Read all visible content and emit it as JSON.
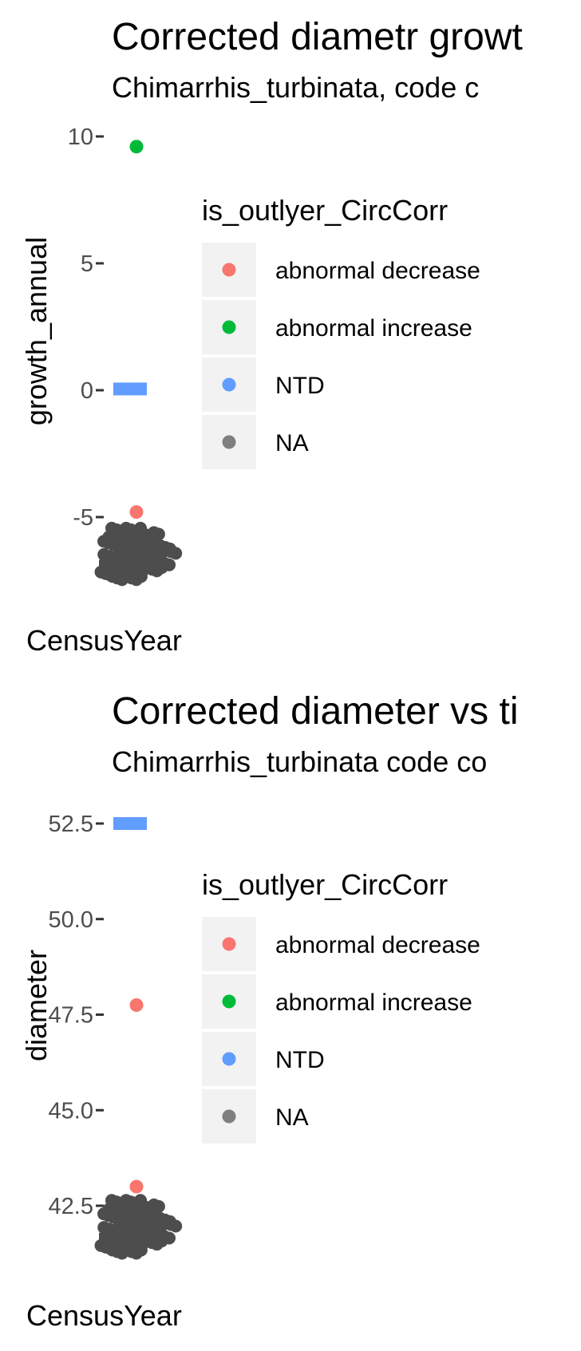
{
  "chart_data": [
    {
      "type": "scatter",
      "title": "Corrected diametr growt",
      "subtitle": "Chimarrhis_turbinata, code c",
      "xlabel": "CensusYear",
      "ylabel": "growth_annual",
      "yticks": [
        {
          "value": 10,
          "label": "10"
        },
        {
          "value": 5,
          "label": "5"
        },
        {
          "value": 0,
          "label": "0"
        },
        {
          "value": -5,
          "label": "-5"
        }
      ],
      "ylim": [
        -7.5,
        10.8
      ],
      "legend": {
        "title": "is_outlyer_CircCorr",
        "placement": "right",
        "entries": [
          {
            "label": "abnormal decrease",
            "color": "#F8766D"
          },
          {
            "label": "abnormal increase",
            "color": "#00BA38"
          },
          {
            "label": "NTD",
            "color": "#619CFF"
          },
          {
            "label": "NA",
            "color": "#7F7F7F"
          }
        ]
      },
      "points": [
        {
          "y": 9.6,
          "class": "abnormal increase",
          "color": "#00BA38"
        },
        {
          "y": 0.05,
          "class": "NTD",
          "color": "#619CFF"
        },
        {
          "y": -4.8,
          "class": "abnormal decrease",
          "color": "#F8766D"
        }
      ],
      "na_cluster": {
        "y_min": -7.4,
        "y_max": -5.5,
        "color": "#4D4D4D"
      }
    },
    {
      "type": "scatter",
      "title": "Corrected diameter vs ti",
      "subtitle": "Chimarrhis_turbinata code co",
      "xlabel": "CensusYear",
      "ylabel": "diameter",
      "yticks": [
        {
          "value": 52.5,
          "label": "52.5"
        },
        {
          "value": 50.0,
          "label": "50.0"
        },
        {
          "value": 47.5,
          "label": "47.5"
        },
        {
          "value": 45.0,
          "label": "45.0"
        },
        {
          "value": 42.5,
          "label": "42.5"
        }
      ],
      "ylim": [
        41.2,
        53.0
      ],
      "legend": {
        "title": "is_outlyer_CircCorr",
        "placement": "right",
        "entries": [
          {
            "label": "abnormal decrease",
            "color": "#F8766D"
          },
          {
            "label": "abnormal increase",
            "color": "#00BA38"
          },
          {
            "label": "NTD",
            "color": "#619CFF"
          },
          {
            "label": "NA",
            "color": "#7F7F7F"
          }
        ]
      },
      "points": [
        {
          "y": 52.5,
          "class": "NTD",
          "color": "#619CFF"
        },
        {
          "y": 47.75,
          "class": "abnormal decrease",
          "color": "#F8766D"
        },
        {
          "y": 43.0,
          "class": "abnormal decrease",
          "color": "#F8766D"
        }
      ],
      "na_cluster": {
        "y_min": 41.3,
        "y_max": 42.6,
        "color": "#4D4D4D"
      }
    }
  ]
}
